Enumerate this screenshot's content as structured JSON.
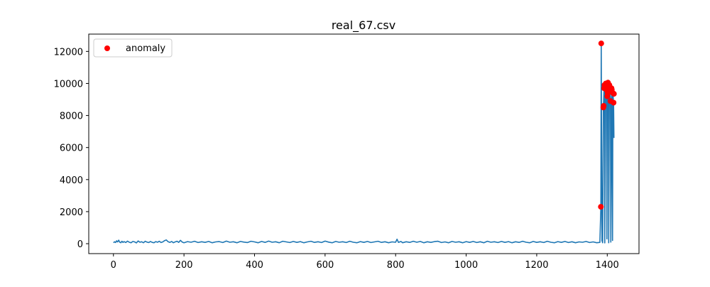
{
  "chart_data": {
    "type": "line",
    "title": "real_67.csv",
    "xlabel": "",
    "ylabel": "",
    "xlim": [
      -70,
      1490
    ],
    "ylim": [
      -620,
      13080
    ],
    "xticks": [
      0,
      200,
      400,
      600,
      800,
      1000,
      1200,
      1400
    ],
    "yticks": [
      0,
      2000,
      4000,
      6000,
      8000,
      10000,
      12000
    ],
    "grid": false,
    "legend": {
      "position": "upper-left",
      "entries": [
        "anomaly"
      ]
    },
    "colors": {
      "line": "#1f77b4",
      "anomaly": "#ff0000",
      "axes": "#000000"
    },
    "series": [
      {
        "kind": "line",
        "baseline": {
          "x_range": [
            0,
            1379
          ],
          "values": [
            [
              0,
              60
            ],
            [
              3,
              120
            ],
            [
              6,
              70
            ],
            [
              9,
              180
            ],
            [
              12,
              110
            ],
            [
              15,
              220
            ],
            [
              18,
              90
            ],
            [
              21,
              60
            ],
            [
              24,
              150
            ],
            [
              27,
              80
            ],
            [
              30,
              130
            ],
            [
              35,
              70
            ],
            [
              40,
              160
            ],
            [
              45,
              90
            ],
            [
              50,
              60
            ],
            [
              55,
              140
            ],
            [
              60,
              110
            ],
            [
              65,
              50
            ],
            [
              70,
              170
            ],
            [
              75,
              90
            ],
            [
              80,
              120
            ],
            [
              85,
              60
            ],
            [
              90,
              150
            ],
            [
              95,
              100
            ],
            [
              100,
              70
            ],
            [
              105,
              140
            ],
            [
              110,
              80
            ],
            [
              115,
              60
            ],
            [
              120,
              130
            ],
            [
              125,
              90
            ],
            [
              130,
              150
            ],
            [
              135,
              70
            ],
            [
              140,
              110
            ],
            [
              145,
              190
            ],
            [
              150,
              230
            ],
            [
              155,
              120
            ],
            [
              160,
              80
            ],
            [
              165,
              140
            ],
            [
              170,
              60
            ],
            [
              175,
              110
            ],
            [
              180,
              150
            ],
            [
              185,
              80
            ],
            [
              190,
              210
            ],
            [
              195,
              100
            ],
            [
              200,
              60
            ],
            [
              210,
              130
            ],
            [
              220,
              90
            ],
            [
              230,
              150
            ],
            [
              240,
              70
            ],
            [
              250,
              120
            ],
            [
              260,
              80
            ],
            [
              270,
              140
            ],
            [
              280,
              60
            ],
            [
              290,
              110
            ],
            [
              300,
              130
            ],
            [
              310,
              70
            ],
            [
              320,
              160
            ],
            [
              330,
              90
            ],
            [
              340,
              120
            ],
            [
              350,
              60
            ],
            [
              360,
              140
            ],
            [
              370,
              100
            ],
            [
              380,
              70
            ],
            [
              390,
              150
            ],
            [
              400,
              110
            ],
            [
              410,
              60
            ],
            [
              420,
              140
            ],
            [
              430,
              80
            ],
            [
              440,
              160
            ],
            [
              450,
              90
            ],
            [
              460,
              120
            ],
            [
              470,
              60
            ],
            [
              480,
              150
            ],
            [
              490,
              110
            ],
            [
              500,
              70
            ],
            [
              510,
              140
            ],
            [
              520,
              80
            ],
            [
              530,
              130
            ],
            [
              540,
              60
            ],
            [
              550,
              110
            ],
            [
              560,
              150
            ],
            [
              570,
              80
            ],
            [
              580,
              120
            ],
            [
              590,
              70
            ],
            [
              600,
              160
            ],
            [
              610,
              100
            ],
            [
              620,
              60
            ],
            [
              630,
              140
            ],
            [
              640,
              90
            ],
            [
              650,
              120
            ],
            [
              660,
              70
            ],
            [
              670,
              150
            ],
            [
              680,
              90
            ],
            [
              690,
              60
            ],
            [
              700,
              130
            ],
            [
              710,
              80
            ],
            [
              720,
              140
            ],
            [
              730,
              70
            ],
            [
              740,
              110
            ],
            [
              750,
              150
            ],
            [
              760,
              80
            ],
            [
              770,
              120
            ],
            [
              780,
              60
            ],
            [
              790,
              110
            ],
            [
              800,
              90
            ],
            [
              804,
              280
            ],
            [
              808,
              80
            ],
            [
              815,
              140
            ],
            [
              820,
              60
            ],
            [
              830,
              120
            ],
            [
              840,
              80
            ],
            [
              850,
              150
            ],
            [
              860,
              90
            ],
            [
              870,
              140
            ],
            [
              880,
              60
            ],
            [
              890,
              120
            ],
            [
              900,
              80
            ],
            [
              910,
              130
            ],
            [
              920,
              150
            ],
            [
              930,
              70
            ],
            [
              940,
              110
            ],
            [
              950,
              60
            ],
            [
              960,
              140
            ],
            [
              970,
              90
            ],
            [
              980,
              120
            ],
            [
              990,
              60
            ],
            [
              1000,
              130
            ],
            [
              1010,
              80
            ],
            [
              1020,
              140
            ],
            [
              1030,
              70
            ],
            [
              1040,
              120
            ],
            [
              1050,
              60
            ],
            [
              1060,
              150
            ],
            [
              1070,
              90
            ],
            [
              1080,
              120
            ],
            [
              1090,
              70
            ],
            [
              1100,
              140
            ],
            [
              1110,
              80
            ],
            [
              1120,
              130
            ],
            [
              1130,
              60
            ],
            [
              1140,
              120
            ],
            [
              1150,
              80
            ],
            [
              1160,
              150
            ],
            [
              1170,
              90
            ],
            [
              1180,
              60
            ],
            [
              1190,
              140
            ],
            [
              1200,
              80
            ],
            [
              1210,
              120
            ],
            [
              1220,
              70
            ],
            [
              1230,
              150
            ],
            [
              1240,
              90
            ],
            [
              1250,
              60
            ],
            [
              1260,
              130
            ],
            [
              1270,
              80
            ],
            [
              1280,
              140
            ],
            [
              1290,
              70
            ],
            [
              1300,
              120
            ],
            [
              1310,
              60
            ],
            [
              1320,
              110
            ],
            [
              1330,
              90
            ],
            [
              1340,
              140
            ],
            [
              1350,
              70
            ],
            [
              1360,
              110
            ],
            [
              1370,
              60
            ],
            [
              1379,
              80
            ]
          ]
        },
        "spike_region": [
          [
            1379,
            80
          ],
          [
            1382,
            2300
          ],
          [
            1383,
            12500
          ],
          [
            1385,
            200
          ],
          [
            1387,
            60
          ],
          [
            1389,
            8500
          ],
          [
            1391,
            9700
          ],
          [
            1392,
            9900
          ],
          [
            1393,
            50
          ],
          [
            1395,
            9800
          ],
          [
            1396,
            10000
          ],
          [
            1398,
            9600
          ],
          [
            1399,
            300
          ],
          [
            1400,
            9200
          ],
          [
            1402,
            10050
          ],
          [
            1403,
            9800
          ],
          [
            1404,
            60
          ],
          [
            1406,
            9900
          ],
          [
            1407,
            9500
          ],
          [
            1409,
            8900
          ],
          [
            1410,
            100
          ],
          [
            1412,
            9700
          ],
          [
            1413,
            9600
          ],
          [
            1415,
            200
          ],
          [
            1416,
            9400
          ],
          [
            1418,
            8800
          ],
          [
            1419,
            6600
          ]
        ]
      },
      {
        "kind": "scatter",
        "name": "anomaly",
        "points": [
          [
            1382,
            2300
          ],
          [
            1383,
            12500
          ],
          [
            1389,
            8500
          ],
          [
            1390,
            8600
          ],
          [
            1391,
            9700
          ],
          [
            1392,
            9900
          ],
          [
            1395,
            9800
          ],
          [
            1396,
            10000
          ],
          [
            1398,
            9600
          ],
          [
            1400,
            9200
          ],
          [
            1401,
            9400
          ],
          [
            1402,
            10050
          ],
          [
            1403,
            9800
          ],
          [
            1406,
            9900
          ],
          [
            1407,
            9500
          ],
          [
            1409,
            8900
          ],
          [
            1412,
            9700
          ],
          [
            1413,
            9600
          ],
          [
            1416,
            9400
          ],
          [
            1418,
            8800
          ],
          [
            1419,
            9350
          ]
        ]
      }
    ]
  }
}
